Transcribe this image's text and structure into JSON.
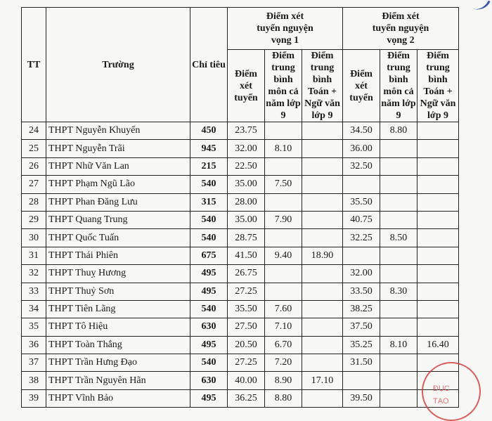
{
  "header": {
    "tt": "TT",
    "school": "Trường",
    "quota": "Chỉ tiêu",
    "nv1": "Điểm xét tuyển nguyện vọng 1",
    "nv2": "Điểm xét tuyển nguyện vọng 2",
    "score": "Điểm xét tuyển",
    "avg_all": "Điểm trung bình môn cả năm lớp 9",
    "avg_math_lit": "Điểm trung bình Toán + Ngữ văn lớp 9"
  },
  "rows": [
    {
      "tt": "24",
      "name": "THPT Nguyễn Khuyến",
      "quota": "450",
      "nv1_score": "23.75",
      "nv1_avg": "",
      "nv1_ml": "",
      "nv2_score": "34.50",
      "nv2_avg": "8.80",
      "nv2_ml": ""
    },
    {
      "tt": "25",
      "name": "THPT Nguyễn Trãi",
      "quota": "945",
      "nv1_score": "32.00",
      "nv1_avg": "8.10",
      "nv1_ml": "",
      "nv2_score": "36.00",
      "nv2_avg": "",
      "nv2_ml": ""
    },
    {
      "tt": "26",
      "name": "THPT Nhữ Văn Lan",
      "quota": "215",
      "nv1_score": "22.50",
      "nv1_avg": "",
      "nv1_ml": "",
      "nv2_score": "32.50",
      "nv2_avg": "",
      "nv2_ml": ""
    },
    {
      "tt": "27",
      "name": "THPT Phạm Ngũ Lão",
      "quota": "540",
      "nv1_score": "35.00",
      "nv1_avg": "7.50",
      "nv1_ml": "",
      "nv2_score": "",
      "nv2_avg": "",
      "nv2_ml": ""
    },
    {
      "tt": "28",
      "name": "THPT Phan Đăng Lưu",
      "quota": "315",
      "nv1_score": "28.00",
      "nv1_avg": "",
      "nv1_ml": "",
      "nv2_score": "35.50",
      "nv2_avg": "",
      "nv2_ml": ""
    },
    {
      "tt": "29",
      "name": "THPT Quang Trung",
      "quota": "540",
      "nv1_score": "35.00",
      "nv1_avg": "7.90",
      "nv1_ml": "",
      "nv2_score": "40.75",
      "nv2_avg": "",
      "nv2_ml": ""
    },
    {
      "tt": "30",
      "name": "THPT Quốc Tuấn",
      "quota": "540",
      "nv1_score": "28.75",
      "nv1_avg": "",
      "nv1_ml": "",
      "nv2_score": "32.25",
      "nv2_avg": "8.50",
      "nv2_ml": ""
    },
    {
      "tt": "31",
      "name": "THPT Thái Phiên",
      "quota": "675",
      "nv1_score": "41.50",
      "nv1_avg": "9.40",
      "nv1_ml": "18.90",
      "nv2_score": "",
      "nv2_avg": "",
      "nv2_ml": ""
    },
    {
      "tt": "32",
      "name": "THPT Thuỵ Hương",
      "quota": "495",
      "nv1_score": "26.75",
      "nv1_avg": "",
      "nv1_ml": "",
      "nv2_score": "32.00",
      "nv2_avg": "",
      "nv2_ml": ""
    },
    {
      "tt": "33",
      "name": "THPT Thuỷ Sơn",
      "quota": "495",
      "nv1_score": "27.25",
      "nv1_avg": "",
      "nv1_ml": "",
      "nv2_score": "33.50",
      "nv2_avg": "8.30",
      "nv2_ml": ""
    },
    {
      "tt": "34",
      "name": "THPT Tiên Lãng",
      "quota": "540",
      "nv1_score": "35.50",
      "nv1_avg": "7.60",
      "nv1_ml": "",
      "nv2_score": "38.25",
      "nv2_avg": "",
      "nv2_ml": ""
    },
    {
      "tt": "35",
      "name": "THPT Tô Hiệu",
      "quota": "630",
      "nv1_score": "27.50",
      "nv1_avg": "7.10",
      "nv1_ml": "",
      "nv2_score": "37.50",
      "nv2_avg": "",
      "nv2_ml": ""
    },
    {
      "tt": "36",
      "name": "THPT Toàn Thắng",
      "quota": "495",
      "nv1_score": "20.50",
      "nv1_avg": "6.70",
      "nv1_ml": "",
      "nv2_score": "35.25",
      "nv2_avg": "8.10",
      "nv2_ml": "16.40"
    },
    {
      "tt": "37",
      "name": "THPT Trần Hưng Đạo",
      "quota": "540",
      "nv1_score": "27.25",
      "nv1_avg": "7.20",
      "nv1_ml": "",
      "nv2_score": "31.50",
      "nv2_avg": "",
      "nv2_ml": ""
    },
    {
      "tt": "38",
      "name": "THPT Trần Nguyên Hãn",
      "quota": "630",
      "nv1_score": "40.00",
      "nv1_avg": "8.90",
      "nv1_ml": "17.10",
      "nv2_score": "",
      "nv2_avg": "",
      "nv2_ml": ""
    },
    {
      "tt": "39",
      "name": "THPT Vĩnh Bảo",
      "quota": "495",
      "nv1_score": "36.25",
      "nv1_avg": "8.80",
      "nv1_ml": "",
      "nv2_score": "39.50",
      "nv2_avg": "",
      "nv2_ml": ""
    }
  ],
  "stamp": {
    "text1": "ĐỤC",
    "text2": "TẠO",
    "color": "#d23a3a"
  }
}
